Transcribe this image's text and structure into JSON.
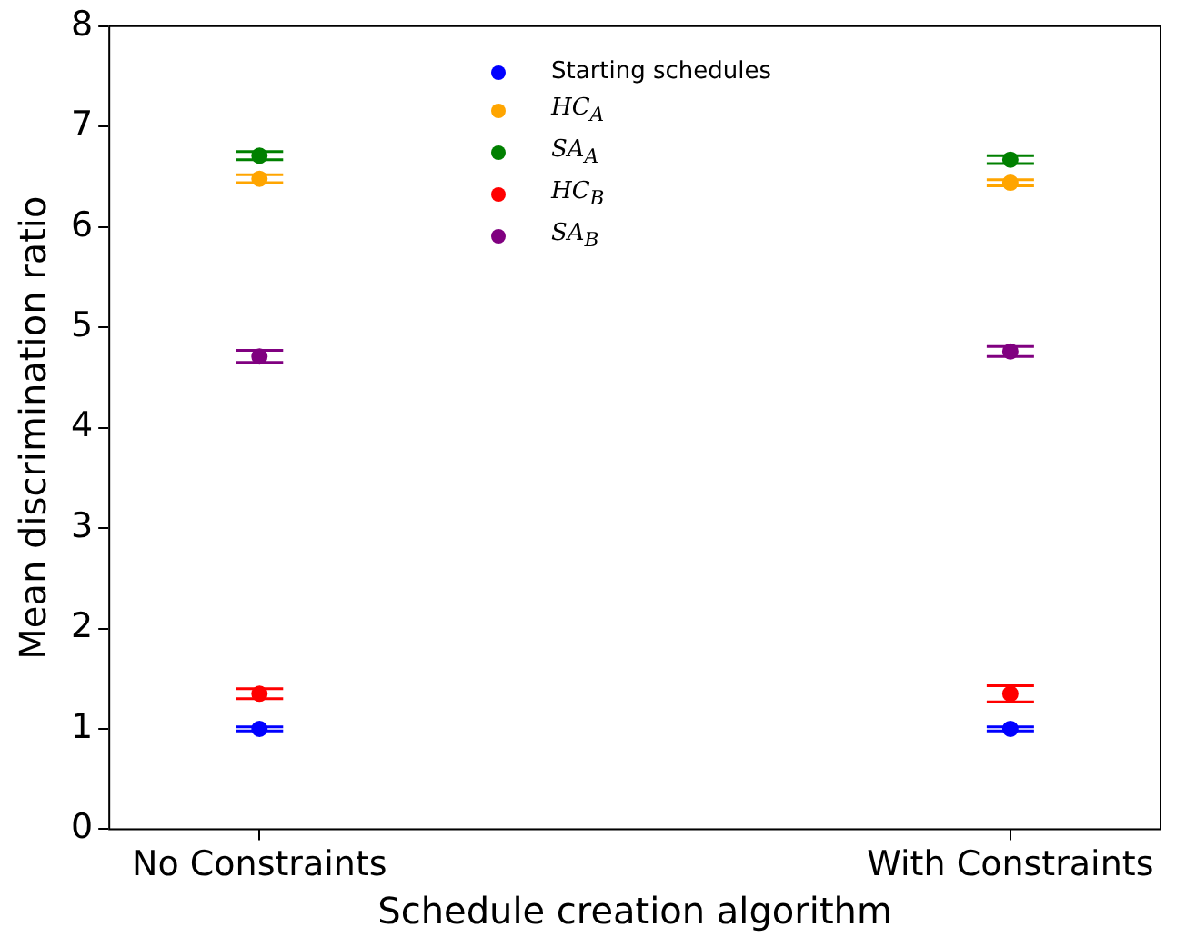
{
  "chart_data": {
    "type": "scatter",
    "xlabel": "Schedule creation algorithm",
    "ylabel": "Mean discrimination ratio",
    "categories": [
      "No Constraints",
      "With Constraints"
    ],
    "ylim": [
      0,
      8
    ],
    "yticks": [
      0,
      1,
      2,
      3,
      4,
      5,
      6,
      7,
      8
    ],
    "legend": "top",
    "marker": "circle",
    "series": [
      {
        "name": "Starting schedules",
        "color": "#0000ff",
        "values": [
          1.0,
          1.0
        ],
        "errors": [
          0.02,
          0.02
        ]
      },
      {
        "name": "HC$_{A}$",
        "color": "#ffa500",
        "values": [
          6.48,
          6.44
        ],
        "errors": [
          0.04,
          0.03
        ]
      },
      {
        "name": "SA$_{A}$",
        "color": "#008000",
        "values": [
          6.71,
          6.67
        ],
        "errors": [
          0.04,
          0.04
        ]
      },
      {
        "name": "HC$_{B}$",
        "color": "#ff0000",
        "values": [
          1.35,
          1.35
        ],
        "errors": [
          0.05,
          0.08
        ]
      },
      {
        "name": "SA$_{B}$",
        "color": "#800080",
        "values": [
          4.71,
          4.76
        ],
        "errors": [
          0.06,
          0.05
        ]
      }
    ]
  }
}
